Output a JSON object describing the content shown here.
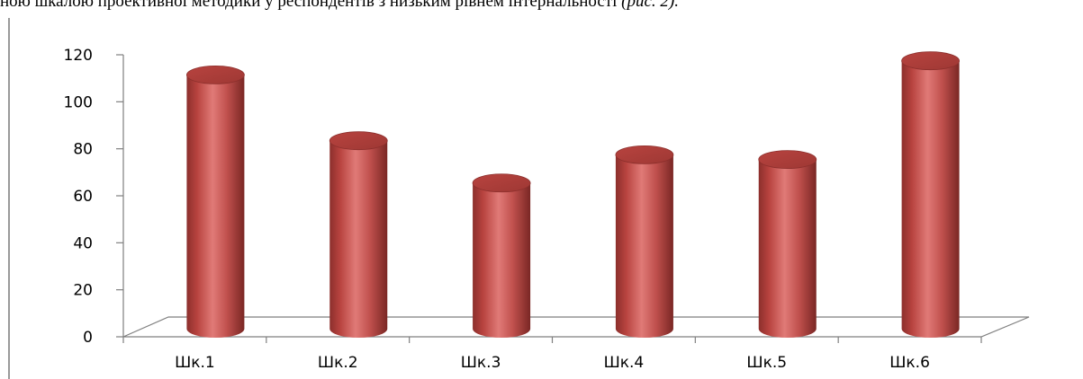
{
  "document": {
    "caption_text": "ною шкалою проективної методики у респондентів з низьким рівнем інтернальності ",
    "caption_ref": "(рис. 2)."
  },
  "colors": {
    "bar_body": "#c0504d",
    "bar_dark": "#8c2f2c",
    "bar_light": "#e07a77",
    "axis": "#7f7f7f"
  },
  "chart_data": {
    "type": "bar",
    "style": "3d-cylinder",
    "categories": [
      "Шк.1",
      "Шк.2",
      "Шк.3",
      "Шк.4",
      "Шк.5",
      "Шк.6"
    ],
    "values": [
      108,
      80,
      62,
      74,
      72,
      114
    ],
    "yticks": [
      "0",
      "20",
      "40",
      "60",
      "80",
      "100",
      "120"
    ],
    "ylim": [
      0,
      120
    ],
    "title": "",
    "xlabel": "",
    "ylabel": "",
    "grid": false,
    "legend": "none"
  }
}
